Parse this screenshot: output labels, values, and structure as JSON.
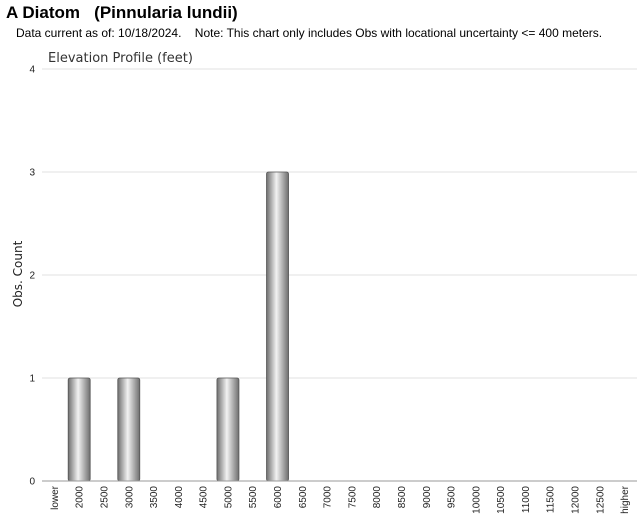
{
  "header": {
    "title": "A Diatom   (Pinnularia lundii)",
    "note": "Data current as of: 10/18/2024.    Note: This chart only includes Obs with locational uncertainty <= 400 meters."
  },
  "chart_data": {
    "type": "bar",
    "title": "Elevation Profile (feet)",
    "xlabel": "",
    "ylabel": "Obs. Count",
    "ylim": [
      0,
      4
    ],
    "yticks": [
      "0",
      "1",
      "2",
      "3",
      "4"
    ],
    "grid": true,
    "categories": [
      "lower",
      "2000",
      "2500",
      "3000",
      "3500",
      "4000",
      "4500",
      "5000",
      "5500",
      "6000",
      "6500",
      "7000",
      "7500",
      "8000",
      "8500",
      "9000",
      "9500",
      "10000",
      "10500",
      "11000",
      "11500",
      "12000",
      "12500",
      "higher"
    ],
    "values": [
      0,
      1,
      0,
      1,
      0,
      0,
      0,
      1,
      0,
      3,
      0,
      0,
      0,
      0,
      0,
      0,
      0,
      0,
      0,
      0,
      0,
      0,
      0,
      0
    ],
    "colors": {
      "bar_dark": "#6e6e6e",
      "bar_light": "#f2f2f2",
      "grid": "#e2e2e2",
      "axis": "#9a9a9a"
    }
  }
}
